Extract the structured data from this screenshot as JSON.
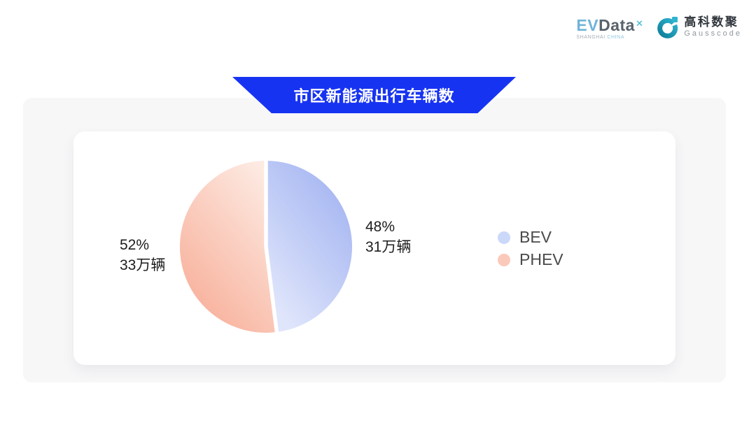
{
  "header": {
    "evdata": {
      "part1": "EV",
      "part2": "Data",
      "sup": "✕",
      "sub1": "SHANGHAI",
      "sub2": "CHINA"
    },
    "gausscode": {
      "cn": "高科数聚",
      "en": "Gausscode"
    }
  },
  "colors": {
    "banner": "#1733f2",
    "panel_bg": "#f7f7f8",
    "logo_teal_dark": "#0f7f9b",
    "logo_teal_light": "#2fb3cf"
  },
  "chart_data": {
    "type": "pie",
    "title": "市区新能源出行车辆数",
    "unit": "万辆",
    "start_angle_deg": 90,
    "direction": "clockwise",
    "legend_position": "right",
    "series": [
      {
        "name": "BEV",
        "percent": 48,
        "value": 31,
        "percent_text": "48%",
        "value_text": "31万辆",
        "gradient": [
          "#a2b3f1",
          "#dfe5fb"
        ],
        "legend_color": "#ccd8fa"
      },
      {
        "name": "PHEV",
        "percent": 52,
        "value": 33,
        "percent_text": "52%",
        "value_text": "33万辆",
        "gradient": [
          "#fdeae2",
          "#f8b19c"
        ],
        "legend_color": "#fbc9ba"
      }
    ]
  }
}
